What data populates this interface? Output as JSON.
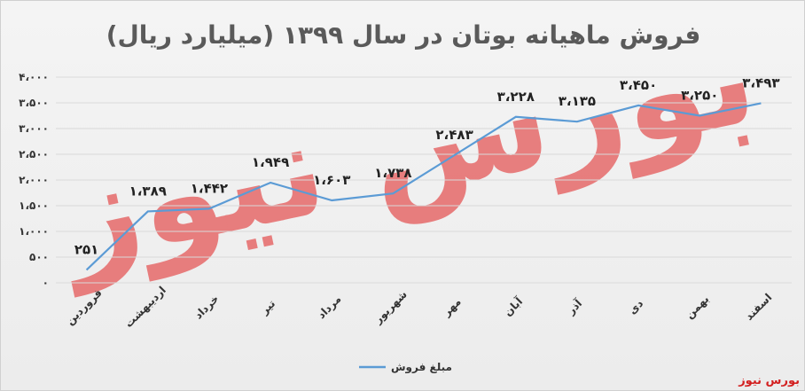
{
  "chart_data": {
    "type": "line",
    "title": "فروش ماهیانه بوتان در سال ۱۳۹۹ (میلیارد ریال)",
    "categories": [
      "فروردین",
      "اردیبهشت",
      "خرداد",
      "تیر",
      "مرداد",
      "شهریور",
      "مهر",
      "آبان",
      "آذر",
      "دی",
      "بهمن",
      "اسفند"
    ],
    "series": [
      {
        "name": "مبلغ فروش",
        "color": "#5b9bd5",
        "values": [
          251,
          1389,
          1442,
          1949,
          1603,
          1738,
          2483,
          3228,
          3135,
          3450,
          3250,
          3493
        ],
        "labels": [
          "۲۵۱",
          "۱،۳۸۹",
          "۱،۴۴۲",
          "۱،۹۴۹",
          "۱،۶۰۳",
          "۱،۷۳۸",
          "۲،۴۸۳",
          "۳،۲۲۸",
          "۳،۱۳۵",
          "۳،۴۵۰",
          "۳،۲۵۰",
          "۳،۴۹۳"
        ]
      }
    ],
    "ylim": [
      0,
      4000
    ],
    "yticks": [
      0,
      500,
      1000,
      1500,
      2000,
      2500,
      3000,
      3500,
      4000
    ],
    "ytick_labels": [
      "۰",
      "۵۰۰",
      "۱،۰۰۰",
      "۱،۵۰۰",
      "۲،۰۰۰",
      "۲،۵۰۰",
      "۳،۰۰۰",
      "۳،۵۰۰",
      "۴،۰۰۰"
    ],
    "grid": true,
    "legend": "bottom"
  },
  "watermark": {
    "text": "بورس نیوز",
    "color": "#e66a6a"
  },
  "source_label": "بورس نیوز"
}
